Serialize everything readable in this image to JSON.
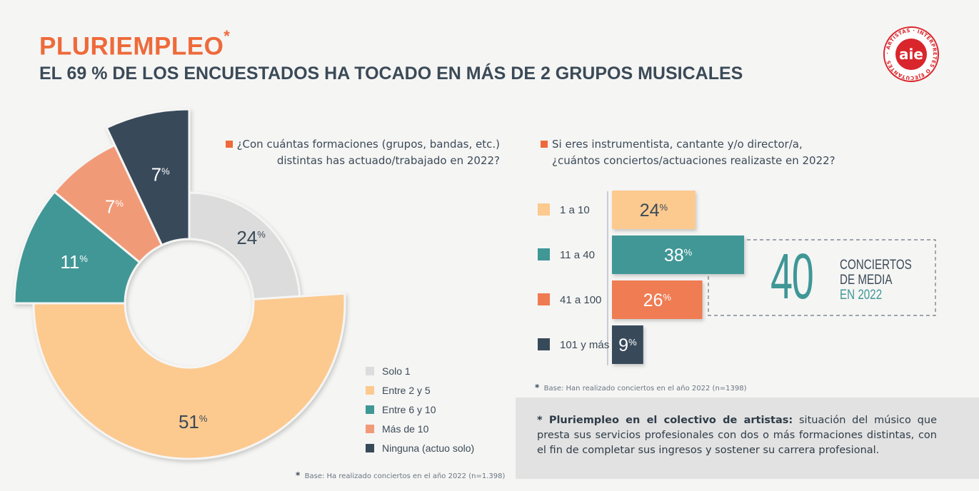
{
  "header": {
    "title": "PLURIEMPLEO",
    "title_mark": "*",
    "subtitle": "EL 69 % DE LOS ENCUESTADOS HA TOCADO EN MÁS DE 2 GRUPOS MUSICALES"
  },
  "logo": {
    "text": "aie",
    "ring_text": "· ARTISTAS · INTÉRPRETES O EJECUTANTES"
  },
  "question1": {
    "line1": "¿Con cuántas formaciones (grupos, bandas, etc.)",
    "line2": "distintas has actuado/trabajado en 2022?"
  },
  "question2": {
    "line1": "Si eres instrumentista, cantante y/o director/a,",
    "line2": "¿cuántos conciertos/actuaciones realizaste en 2022?"
  },
  "base1": {
    "mark": "*",
    "text": "Base: Ha realizado conciertos en el año 2022 (n=1.398)"
  },
  "base2": {
    "mark": "*",
    "text": "Base: Han realizado conciertos en el año 2022 (n=1398)"
  },
  "average": {
    "value": "40",
    "line1": "CONCIERTOS",
    "line2": "DE MEDIA",
    "line3": "EN 2022"
  },
  "note": {
    "bold": "* Pluriempleo en el colectivo de artistas:",
    "text": " situación del músico que presta sus servicios profesionales con dos o más formaciones distintas, con el fin de completar sus ingresos y sostener su carrera profesional."
  },
  "colors": {
    "gray": "#dcdcdc",
    "peach": "#fcc98f",
    "teal": "#3f9796",
    "salmon": "#f19a78",
    "navy": "#374a5a",
    "orange": "#ee6a3a",
    "bar_orange": "#ef7b52"
  },
  "chart_data": [
    {
      "type": "pie",
      "series": [
        {
          "name": "Solo 1",
          "value": 24,
          "color": "#dcdcdc"
        },
        {
          "name": "Entre 2 y 5",
          "value": 51,
          "color": "#fcc98f"
        },
        {
          "name": "Entre 6 y 10",
          "value": 11,
          "color": "#3f9796"
        },
        {
          "name": "Más de 10",
          "value": 7,
          "color": "#f19a78"
        },
        {
          "name": "Ninguna (actuo solo)",
          "value": 7,
          "color": "#374a5a"
        }
      ],
      "unit": "%"
    },
    {
      "type": "bar",
      "categories": [
        "1 a 10",
        "11 a 40",
        "41 a 100",
        "101 y más"
      ],
      "values": [
        24,
        38,
        26,
        9
      ],
      "colors": [
        "#fcc98f",
        "#3f9796",
        "#ef7b52",
        "#374a5a"
      ],
      "unit": "%"
    }
  ]
}
